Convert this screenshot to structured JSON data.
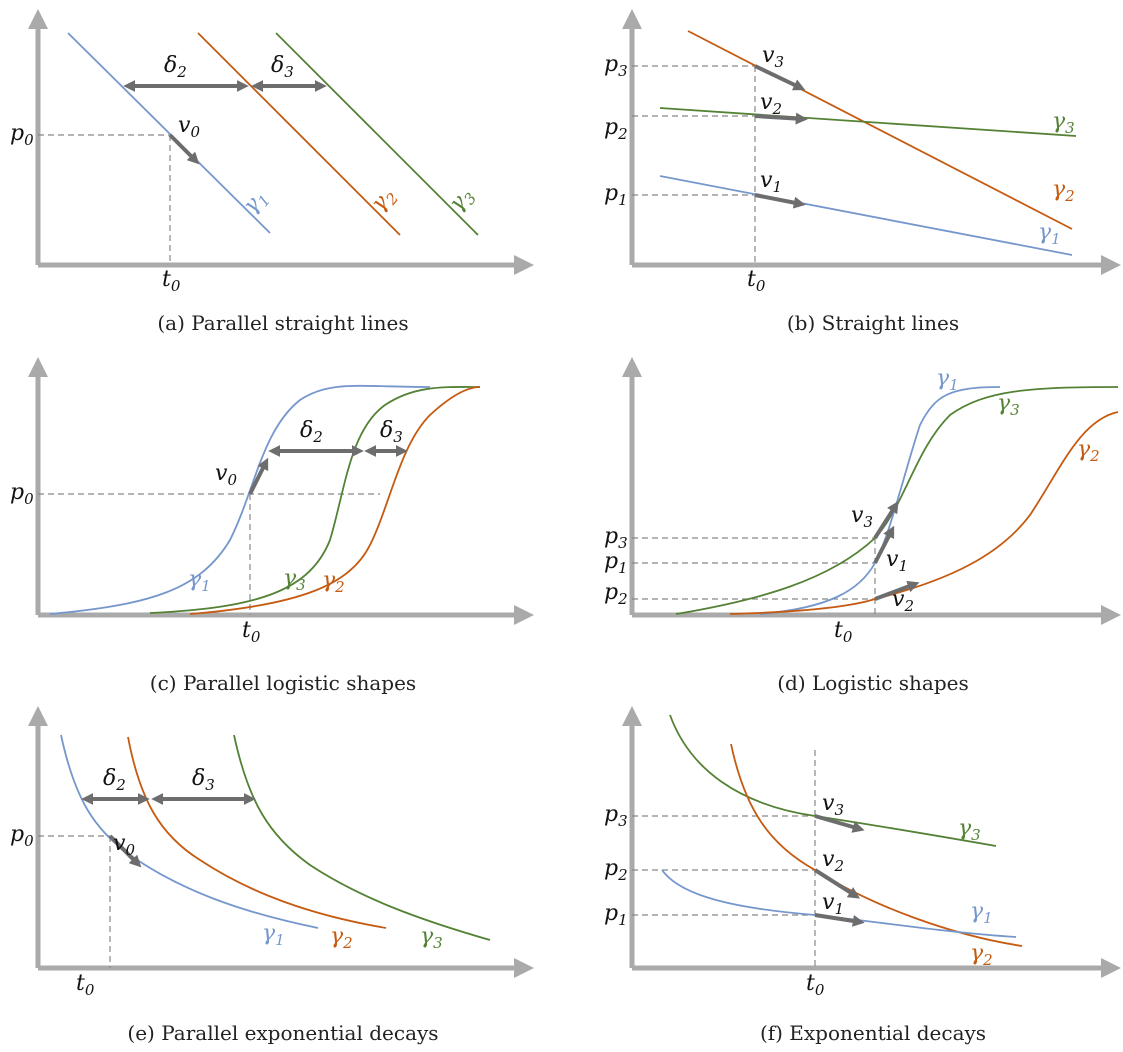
{
  "figure": {
    "panels": [
      {
        "id": "a",
        "caption": "(a) Parallel straight lines"
      },
      {
        "id": "b",
        "caption": "(b) Straight lines"
      },
      {
        "id": "c",
        "caption": "(c) Parallel logistic shapes"
      },
      {
        "id": "d",
        "caption": "(d) Logistic shapes"
      },
      {
        "id": "e",
        "caption": "(e) Parallel exponential decays"
      },
      {
        "id": "f",
        "caption": "(f) Exponential decays"
      }
    ]
  },
  "symbols": {
    "t0": "t",
    "t0_sub": "0",
    "p0": "p",
    "p0_sub": "0",
    "p1": "p",
    "p1_sub": "1",
    "p2": "p",
    "p2_sub": "2",
    "p3": "p",
    "p3_sub": "3",
    "v0": "v",
    "v0_sub": "0",
    "v1": "v",
    "v1_sub": "1",
    "v2": "v",
    "v2_sub": "2",
    "v3": "v",
    "v3_sub": "3",
    "g1": "γ",
    "g1_sub": "1",
    "g2": "γ",
    "g2_sub": "2",
    "g3": "γ",
    "g3_sub": "3",
    "d2": "δ",
    "d2_sub": "2",
    "d3": "δ",
    "d3_sub": "3"
  },
  "colors": {
    "gamma1": "#7597cc",
    "gamma2": "#c55a11",
    "gamma3": "#548235",
    "axis": "#aaaaaa",
    "arrow": "#6d6d6d"
  }
}
